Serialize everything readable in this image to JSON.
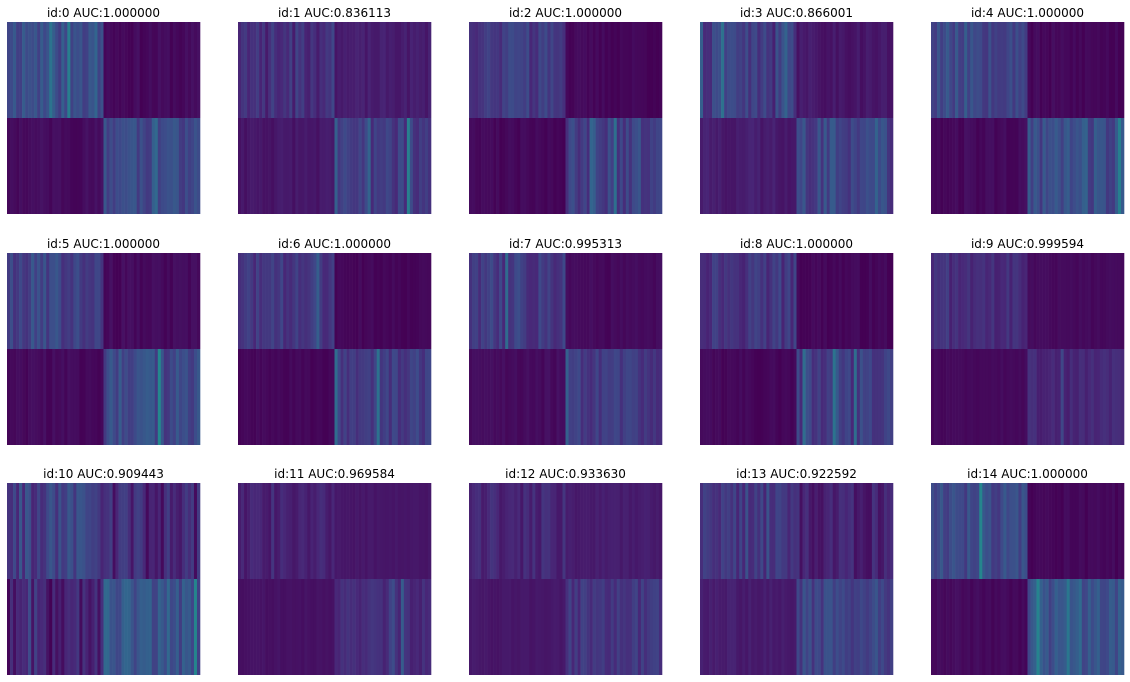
{
  "chart_data": {
    "type": "heatmap",
    "layout": {
      "rows": 3,
      "cols": 5
    },
    "colormap": [
      "#440154",
      "#482878",
      "#3e4989",
      "#31688e",
      "#26828e",
      "#1f9e89",
      "#35b779",
      "#6ece58"
    ],
    "panels": [
      {
        "id": 0,
        "title": "id:0 AUC:1.000000",
        "auc": 1.0,
        "level_a": 0.32,
        "level_d": 0.3,
        "level_b": 0.03,
        "level_c": 0.04,
        "spread": 0.12,
        "seed": 11
      },
      {
        "id": 1,
        "title": "id:1 AUC:0.836113",
        "auc": 0.836113,
        "level_a": 0.18,
        "level_d": 0.24,
        "level_b": 0.1,
        "level_c": 0.08,
        "spread": 0.12,
        "seed": 23
      },
      {
        "id": 2,
        "title": "id:2 AUC:1.000000",
        "auc": 1.0,
        "level_a": 0.22,
        "level_d": 0.24,
        "level_b": 0.02,
        "level_c": 0.02,
        "spread": 0.1,
        "seed": 37
      },
      {
        "id": 3,
        "title": "id:3 AUC:0.866001",
        "auc": 0.866001,
        "level_a": 0.22,
        "level_d": 0.26,
        "level_b": 0.08,
        "level_c": 0.1,
        "spread": 0.14,
        "seed": 41
      },
      {
        "id": 4,
        "title": "id:4 AUC:1.000000",
        "auc": 1.0,
        "level_a": 0.3,
        "level_d": 0.3,
        "level_b": 0.02,
        "level_c": 0.03,
        "spread": 0.12,
        "seed": 53
      },
      {
        "id": 5,
        "title": "id:5 AUC:1.000000",
        "auc": 1.0,
        "level_a": 0.27,
        "level_d": 0.28,
        "level_b": 0.03,
        "level_c": 0.03,
        "spread": 0.12,
        "seed": 67
      },
      {
        "id": 6,
        "title": "id:6 AUC:1.000000",
        "auc": 1.0,
        "level_a": 0.2,
        "level_d": 0.22,
        "level_b": 0.02,
        "level_c": 0.02,
        "spread": 0.08,
        "seed": 71
      },
      {
        "id": 7,
        "title": "id:7 AUC:0.995313",
        "auc": 0.995313,
        "level_a": 0.22,
        "level_d": 0.22,
        "level_b": 0.03,
        "level_c": 0.04,
        "spread": 0.1,
        "seed": 83
      },
      {
        "id": 8,
        "title": "id:8 AUC:1.000000",
        "auc": 1.0,
        "level_a": 0.2,
        "level_d": 0.22,
        "level_b": 0.02,
        "level_c": 0.02,
        "spread": 0.1,
        "seed": 97
      },
      {
        "id": 9,
        "title": "id:9 AUC:0.999594",
        "auc": 0.999594,
        "level_a": 0.16,
        "level_d": 0.14,
        "level_b": 0.03,
        "level_c": 0.03,
        "spread": 0.06,
        "seed": 101
      },
      {
        "id": 10,
        "title": "id:10 AUC:0.909443",
        "auc": 0.909443,
        "level_a": 0.24,
        "level_d": 0.34,
        "level_b": 0.14,
        "level_c": 0.11,
        "spread": 0.14,
        "seed": 113
      },
      {
        "id": 11,
        "title": "id:11 AUC:0.969584",
        "auc": 0.969584,
        "level_a": 0.12,
        "level_d": 0.16,
        "level_b": 0.08,
        "level_c": 0.06,
        "spread": 0.06,
        "seed": 127
      },
      {
        "id": 12,
        "title": "id:12 AUC:0.933630",
        "auc": 0.93363,
        "level_a": 0.14,
        "level_d": 0.2,
        "level_b": 0.1,
        "level_c": 0.08,
        "spread": 0.08,
        "seed": 131
      },
      {
        "id": 13,
        "title": "id:13 AUC:0.922592",
        "auc": 0.922592,
        "level_a": 0.2,
        "level_d": 0.26,
        "level_b": 0.12,
        "level_c": 0.1,
        "spread": 0.1,
        "seed": 149
      },
      {
        "id": 14,
        "title": "id:14 AUC:1.000000",
        "auc": 1.0,
        "level_a": 0.28,
        "level_d": 0.32,
        "level_b": 0.02,
        "level_c": 0.03,
        "spread": 0.1,
        "seed": 151
      }
    ]
  }
}
